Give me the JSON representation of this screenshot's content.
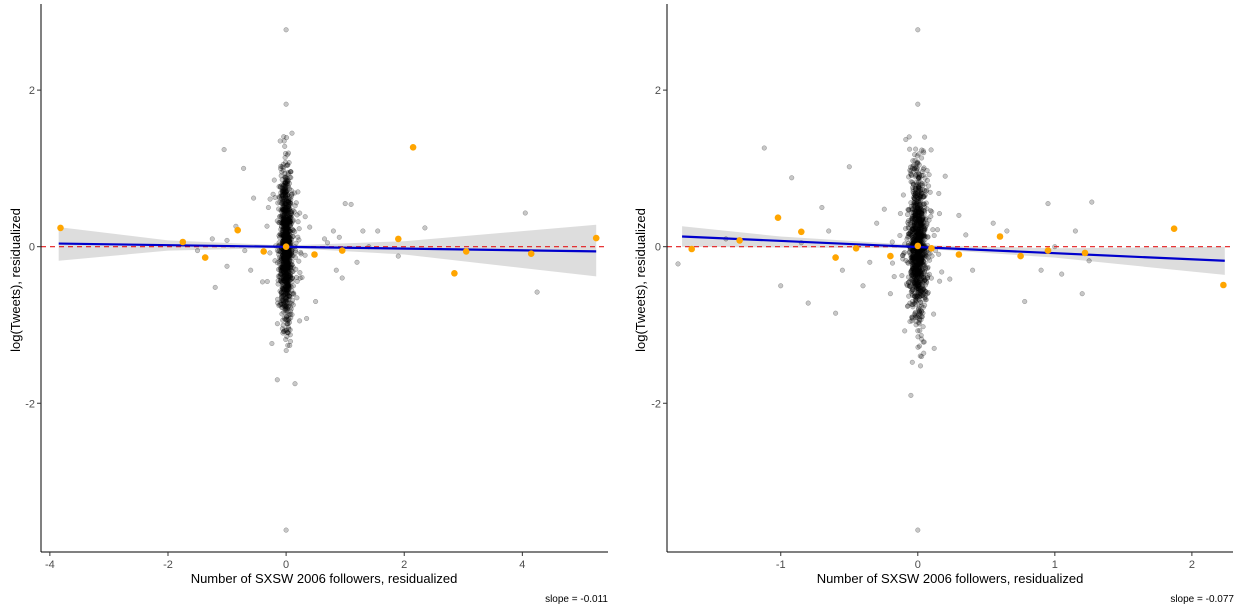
{
  "chart_data": [
    {
      "type": "scatter",
      "xlabel": "Number of SXSW 2006 followers, residualized",
      "ylabel": "log(Tweets), residualized",
      "caption": "slope = -0.011",
      "xlim": [
        -4.15,
        5.45
      ],
      "ylim": [
        -3.9,
        3.1
      ],
      "xticks": [
        -4,
        -2,
        0,
        2,
        4
      ],
      "yticks": [
        -2,
        0,
        2
      ],
      "xtick_labels": [
        "-4",
        "-2",
        "0",
        "2",
        "4"
      ],
      "ytick_labels": [
        "-2",
        "0",
        "2"
      ],
      "grid": false,
      "reference_line": {
        "y": 0,
        "color": "#e41a1c",
        "style": "dashed"
      },
      "fit_line": {
        "x": [
          -3.85,
          5.25
        ],
        "y": [
          0.04,
          -0.06
        ],
        "color": "#0000cc"
      },
      "confidence_band": {
        "x": [
          -3.85,
          -2,
          0,
          2,
          5.25
        ],
        "upper": [
          0.25,
          0.08,
          0.015,
          0.07,
          0.28
        ],
        "lower": [
          -0.18,
          -0.05,
          -0.015,
          -0.1,
          -0.38
        ]
      },
      "colors": {
        "points": "#000000",
        "highlight": "#ffa500",
        "band": "#d9d9d9"
      },
      "seed": 11,
      "highlight_points": [
        {
          "x": -3.82,
          "y": 0.24
        },
        {
          "x": -1.75,
          "y": 0.06
        },
        {
          "x": -1.37,
          "y": -0.14
        },
        {
          "x": -0.82,
          "y": 0.21
        },
        {
          "x": -0.38,
          "y": -0.06
        },
        {
          "x": 0.0,
          "y": 0.0
        },
        {
          "x": 0.48,
          "y": -0.1
        },
        {
          "x": 0.95,
          "y": -0.05
        },
        {
          "x": 1.9,
          "y": 0.1
        },
        {
          "x": 2.15,
          "y": 1.27
        },
        {
          "x": 2.85,
          "y": -0.34
        },
        {
          "x": 3.05,
          "y": -0.06
        },
        {
          "x": 4.15,
          "y": -0.09
        },
        {
          "x": 5.25,
          "y": 0.11
        }
      ],
      "gray_points": [
        {
          "x": 0.0,
          "y": 2.77
        },
        {
          "x": 0.0,
          "y": 1.82
        },
        {
          "x": -1.05,
          "y": 1.24
        },
        {
          "x": -0.72,
          "y": 1.0
        },
        {
          "x": 4.05,
          "y": 0.43
        },
        {
          "x": 4.25,
          "y": -0.58
        },
        {
          "x": 1.0,
          "y": 0.55
        },
        {
          "x": 1.1,
          "y": 0.54
        },
        {
          "x": 2.35,
          "y": 0.24
        },
        {
          "x": 1.55,
          "y": 0.2
        },
        {
          "x": 1.3,
          "y": 0.2
        },
        {
          "x": 0.8,
          "y": 0.2
        },
        {
          "x": -0.85,
          "y": 0.26
        },
        {
          "x": -0.3,
          "y": 0.5
        },
        {
          "x": -0.55,
          "y": 0.62
        },
        {
          "x": -1.0,
          "y": 0.08
        },
        {
          "x": -1.25,
          "y": 0.1
        },
        {
          "x": -1.2,
          "y": -0.52
        },
        {
          "x": -1.0,
          "y": -0.25
        },
        {
          "x": -0.6,
          "y": -0.3
        },
        {
          "x": -0.4,
          "y": -0.45
        },
        {
          "x": 0.5,
          "y": -0.7
        },
        {
          "x": 0.85,
          "y": -0.3
        },
        {
          "x": 0.95,
          "y": -0.4
        },
        {
          "x": 1.9,
          "y": -0.12
        },
        {
          "x": 0.65,
          "y": 0.1
        },
        {
          "x": 0.9,
          "y": 0.12
        },
        {
          "x": 0.4,
          "y": 0.25
        },
        {
          "x": 0.2,
          "y": 0.7
        },
        {
          "x": -0.2,
          "y": 0.85
        },
        {
          "x": 0.0,
          "y": -3.62
        },
        {
          "x": -0.15,
          "y": -1.7
        },
        {
          "x": 0.15,
          "y": -1.75
        },
        {
          "x": -0.1,
          "y": 1.35
        },
        {
          "x": 0.1,
          "y": 1.45
        },
        {
          "x": 1.4,
          "y": 0.0
        },
        {
          "x": 1.2,
          "y": -0.2
        },
        {
          "x": -0.7,
          "y": -0.05
        },
        {
          "x": 0.7,
          "y": 0.05
        },
        {
          "x": -1.5,
          "y": -0.05
        }
      ],
      "cloud": {
        "count": 1100,
        "x_sd": 0.05,
        "y_sd": 0.48
      }
    },
    {
      "type": "scatter",
      "xlabel": "Number of SXSW 2006 followers, residualized",
      "ylabel": "log(Tweets), residualized",
      "caption": "slope = -0.077",
      "xlim": [
        -1.83,
        2.3
      ],
      "ylim": [
        -3.9,
        3.1
      ],
      "xticks": [
        -1,
        0,
        1,
        2
      ],
      "yticks": [
        -2,
        0,
        2
      ],
      "xtick_labels": [
        "-1",
        "0",
        "1",
        "2"
      ],
      "ytick_labels": [
        "-2",
        "0",
        "2"
      ],
      "grid": false,
      "reference_line": {
        "y": 0,
        "color": "#e41a1c",
        "style": "dashed"
      },
      "fit_line": {
        "x": [
          -1.72,
          2.24
        ],
        "y": [
          0.13,
          -0.18
        ],
        "color": "#0000cc"
      },
      "confidence_band": {
        "x": [
          -1.72,
          -1,
          0,
          1,
          2.24
        ],
        "upper": [
          0.26,
          0.13,
          0.02,
          -0.02,
          0.0
        ],
        "lower": [
          0.0,
          -0.01,
          -0.02,
          -0.14,
          -0.36
        ]
      },
      "colors": {
        "points": "#000000",
        "highlight": "#ffa500",
        "band": "#d9d9d9"
      },
      "seed": 23,
      "highlight_points": [
        {
          "x": -1.65,
          "y": -0.03
        },
        {
          "x": -1.3,
          "y": 0.08
        },
        {
          "x": -1.02,
          "y": 0.37
        },
        {
          "x": -0.85,
          "y": 0.19
        },
        {
          "x": -0.6,
          "y": -0.14
        },
        {
          "x": -0.45,
          "y": -0.02
        },
        {
          "x": -0.2,
          "y": -0.12
        },
        {
          "x": 0.0,
          "y": 0.01
        },
        {
          "x": 0.1,
          "y": -0.02
        },
        {
          "x": 0.3,
          "y": -0.1
        },
        {
          "x": 0.6,
          "y": 0.13
        },
        {
          "x": 0.75,
          "y": -0.12
        },
        {
          "x": 0.95,
          "y": -0.05
        },
        {
          "x": 1.22,
          "y": -0.08
        },
        {
          "x": 1.87,
          "y": 0.23
        },
        {
          "x": 2.23,
          "y": -0.49
        }
      ],
      "gray_points": [
        {
          "x": 0.0,
          "y": 2.77
        },
        {
          "x": 0.0,
          "y": 1.82
        },
        {
          "x": -1.12,
          "y": 1.26
        },
        {
          "x": -0.5,
          "y": 1.02
        },
        {
          "x": -0.92,
          "y": 0.88
        },
        {
          "x": 1.27,
          "y": 0.57
        },
        {
          "x": 0.95,
          "y": 0.55
        },
        {
          "x": 0.65,
          "y": 0.2
        },
        {
          "x": 1.15,
          "y": 0.2
        },
        {
          "x": -1.75,
          "y": -0.22
        },
        {
          "x": -1.0,
          "y": -0.5
        },
        {
          "x": -0.8,
          "y": -0.72
        },
        {
          "x": 1.2,
          "y": -0.6
        },
        {
          "x": 0.78,
          "y": -0.7
        },
        {
          "x": 1.25,
          "y": -0.18
        },
        {
          "x": 0.9,
          "y": -0.3
        },
        {
          "x": -0.4,
          "y": -0.5
        },
        {
          "x": -0.55,
          "y": -0.3
        },
        {
          "x": -0.3,
          "y": 0.3
        },
        {
          "x": 0.3,
          "y": 0.4
        },
        {
          "x": 0.55,
          "y": 0.3
        },
        {
          "x": -0.65,
          "y": 0.2
        },
        {
          "x": -0.7,
          "y": 0.5
        },
        {
          "x": 0.0,
          "y": -3.62
        },
        {
          "x": -0.05,
          "y": -1.9
        },
        {
          "x": 0.05,
          "y": 1.4
        },
        {
          "x": 0.4,
          "y": -0.3
        },
        {
          "x": -0.2,
          "y": -0.6
        },
        {
          "x": -0.85,
          "y": 0.05
        },
        {
          "x": -1.4,
          "y": 0.1
        },
        {
          "x": 0.35,
          "y": 0.15
        },
        {
          "x": -0.35,
          "y": -0.2
        },
        {
          "x": 1.0,
          "y": 0.0
        },
        {
          "x": 1.05,
          "y": -0.35
        },
        {
          "x": -0.6,
          "y": -0.85
        },
        {
          "x": 0.2,
          "y": 0.9
        }
      ],
      "cloud": {
        "count": 1100,
        "x_sd": 0.03,
        "y_sd": 0.48
      }
    }
  ]
}
